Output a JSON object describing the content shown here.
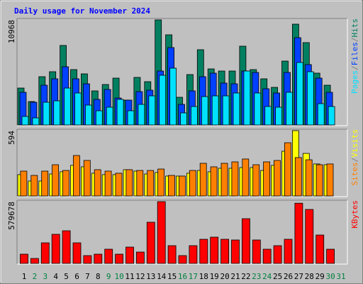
{
  "chart_data": [
    {
      "type": "bar",
      "title": "Daily usage for November 2024",
      "ylim": [
        0,
        10968
      ],
      "yticks": [
        10968
      ],
      "legend_separator": "/",
      "series": [
        {
          "name": "Hits",
          "color": "#008060",
          "values": [
            3853,
            2445,
            5039,
            5558,
            8300,
            5780,
            5335,
            3557,
            4224,
            4891,
            2594,
            4965,
            4520,
            10968,
            9411,
            2890,
            5261,
            7855,
            5854,
            5632,
            5632,
            8225,
            5780,
            4817,
            3927,
            6669,
            10522,
            8596,
            5410,
            4150,
            null
          ]
        },
        {
          "name": "Files",
          "color": "#0040ff",
          "values": [
            3409,
            2371,
            4150,
            4817,
            6076,
            4817,
            4298,
            2668,
            3705,
            2816,
            2594,
            3483,
            3631,
            5632,
            8077,
            2149,
            3557,
            5039,
            5409,
            4372,
            4298,
            5632,
            5483,
            3779,
            3335,
            5483,
            9114,
            6299,
            4891,
            3409,
            null
          ]
        },
        {
          "name": "Pages",
          "color": "#00e0ff",
          "values": [
            889,
            741,
            2371,
            2519,
            3853,
            3335,
            2075,
            1482,
            1853,
            2668,
            1482,
            2149,
            3038,
            5187,
            5928,
            1260,
            1927,
            2964,
            3038,
            3038,
            3335,
            5632,
            3335,
            1927,
            1853,
            3409,
            6521,
            5558,
            2223,
            1927,
            null
          ]
        }
      ]
    },
    {
      "type": "bar",
      "ylim": [
        0,
        594
      ],
      "yticks": [
        594
      ],
      "legend_separator": "/",
      "series": [
        {
          "name": "Visits",
          "color": "#ffff00",
          "values": [
            194,
            136,
            136,
            200,
            220,
            278,
            265,
            207,
            194,
            194,
            239,
            226,
            200,
            213,
            181,
            181,
            207,
            232,
            220,
            252,
            252,
            258,
            258,
            232,
            278,
            407,
            594,
            387,
            291,
            284,
            null
          ]
        },
        {
          "name": "Sites",
          "color": "#ff8000",
          "values": [
            226,
            187,
            226,
            284,
            232,
            368,
            323,
            239,
            226,
            207,
            239,
            232,
            232,
            245,
            187,
            181,
            232,
            297,
            265,
            297,
            310,
            336,
            284,
            310,
            323,
            484,
            349,
            329,
            284,
            291,
            null
          ]
        }
      ]
    },
    {
      "type": "bar",
      "ylim": [
        0,
        579678
      ],
      "yticks": [
        579678
      ],
      "categories": [
        "1",
        "2",
        "3",
        "4",
        "5",
        "6",
        "7",
        "8",
        "9",
        "10",
        "11",
        "12",
        "13",
        "14",
        "15",
        "16",
        "17",
        "18",
        "19",
        "20",
        "21",
        "22",
        "23",
        "24",
        "25",
        "26",
        "27",
        "28",
        "29",
        "30",
        "31"
      ],
      "category_colors": [
        "#000000",
        "#008040",
        "#008040",
        "#000000",
        "#000000",
        "#000000",
        "#000000",
        "#000000",
        "#008040",
        "#008040",
        "#000000",
        "#000000",
        "#000000",
        "#000000",
        "#000000",
        "#008040",
        "#008040",
        "#000000",
        "#000000",
        "#000000",
        "#000000",
        "#000000",
        "#008040",
        "#008040",
        "#000000",
        "#000000",
        "#000000",
        "#000000",
        "#000000",
        "#008040",
        "#008040"
      ],
      "series": [
        {
          "name": "KBytes",
          "color": "#ff0000",
          "values": [
            86619,
            46641,
            193227,
            273183,
            306498,
            193227,
            73293,
            86619,
            133260,
            86619,
            153249,
            106608,
            386454,
            579678,
            166575,
            73293,
            166575,
            226542,
            246531,
            226542,
            219879,
            419769,
            219879,
            133260,
            166575,
            226542,
            565000,
            506388,
            266520,
            133260,
            null
          ]
        }
      ]
    }
  ]
}
